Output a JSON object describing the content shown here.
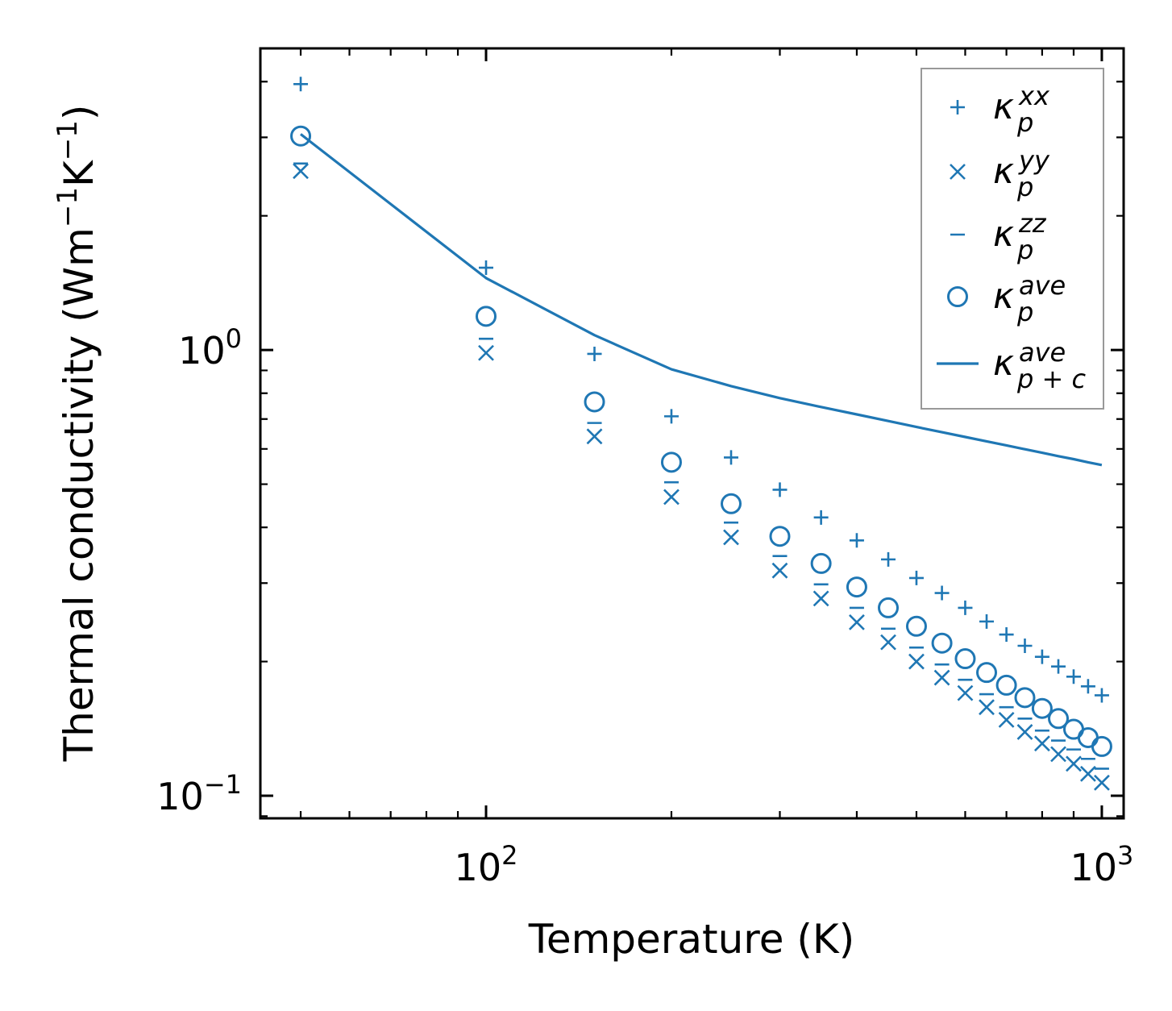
{
  "chart_data": {
    "type": "scatter",
    "xlabel": "Temperature (K)",
    "ylabel_main": "Thermal conductivity (Wm",
    "ylabel_exp1": "−1",
    "ylabel_mid": "K",
    "ylabel_exp2": "−1",
    "ylabel_end": ")",
    "xscale": "log",
    "yscale": "log",
    "xlim": [
      43,
      1085
    ],
    "ylim": [
      0.089,
      4.75
    ],
    "x_ticks": [
      {
        "value": 100,
        "base": "10",
        "exp": "2"
      },
      {
        "value": 1000,
        "base": "10",
        "exp": "3"
      }
    ],
    "y_ticks": [
      {
        "value": 0.1,
        "base": "10",
        "exp": "−1"
      },
      {
        "value": 1.0,
        "base": "10",
        "exp": "0"
      }
    ],
    "legend_position": "top-right",
    "x": [
      50,
      100,
      150,
      200,
      250,
      300,
      350,
      400,
      450,
      500,
      550,
      600,
      650,
      700,
      750,
      800,
      850,
      900,
      950,
      1000
    ],
    "series": [
      {
        "name": "xx",
        "base": "κ",
        "sub": "p",
        "sup": "xx",
        "marker": "plus",
        "values": [
          3.95,
          1.53,
          0.98,
          0.71,
          0.574,
          0.486,
          0.421,
          0.374,
          0.339,
          0.308,
          0.285,
          0.264,
          0.246,
          0.23,
          0.217,
          0.205,
          0.195,
          0.185,
          0.176,
          0.168
        ]
      },
      {
        "name": "yy",
        "base": "κ",
        "sub": "p",
        "sup": "yy",
        "marker": "x",
        "values": [
          2.52,
          0.985,
          0.64,
          0.468,
          0.38,
          0.32,
          0.277,
          0.245,
          0.221,
          0.2,
          0.184,
          0.17,
          0.158,
          0.148,
          0.139,
          0.131,
          0.124,
          0.118,
          0.112,
          0.107
        ]
      },
      {
        "name": "zz",
        "base": "κ",
        "sub": "p",
        "sup": "zz",
        "marker": "hline",
        "values": [
          2.62,
          1.06,
          0.686,
          0.505,
          0.41,
          0.345,
          0.298,
          0.264,
          0.237,
          0.215,
          0.197,
          0.182,
          0.169,
          0.158,
          0.149,
          0.14,
          0.133,
          0.127,
          0.121,
          0.115
        ]
      },
      {
        "name": "ave",
        "base": "κ",
        "sub": "p",
        "sup": "ave",
        "marker": "circle",
        "values": [
          3.02,
          1.19,
          0.765,
          0.56,
          0.452,
          0.382,
          0.332,
          0.294,
          0.264,
          0.24,
          0.22,
          0.203,
          0.189,
          0.177,
          0.166,
          0.157,
          0.149,
          0.141,
          0.135,
          0.129
        ]
      },
      {
        "name": "ave_pc",
        "base": "κ",
        "sub": "p + c",
        "sup": "ave",
        "marker": "line",
        "values": [
          3.05,
          1.45,
          1.08,
          0.905,
          0.83,
          0.78,
          0.745,
          0.717,
          0.693,
          0.672,
          0.654,
          0.638,
          0.624,
          0.611,
          0.599,
          0.588,
          0.578,
          0.569,
          0.56,
          0.552
        ]
      }
    ],
    "colors": {
      "series": "#1f77b4",
      "axes": "#000000",
      "legend_border": "#999999"
    }
  }
}
